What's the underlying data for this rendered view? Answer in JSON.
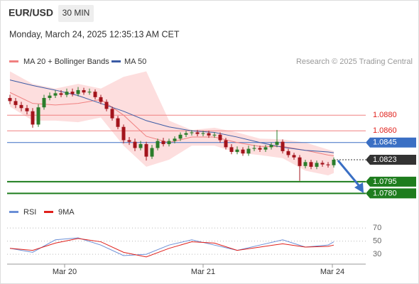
{
  "header": {
    "symbol": "EUR/USD",
    "interval": "30 MIN",
    "timestamp": "Monday, March 24, 2025 12:35:13 AM CET"
  },
  "chart_data": [
    {
      "type": "candlestick",
      "source": "Research © 2025 Trading Central",
      "xlim": [
        -0.5,
        62.625
      ],
      "ylim": [
        1.0764,
        1.0941
      ],
      "up_color": "#2b7d2b",
      "down_color": "#a3141c",
      "open": [
        1.0902,
        1.0898,
        1.0893,
        1.0889,
        1.0885,
        1.0868,
        1.089,
        1.0902,
        1.0905,
        1.0908,
        1.0906,
        1.091,
        1.0907,
        1.0912,
        1.0909,
        1.091,
        1.0903,
        1.0897,
        1.0888,
        1.0876,
        1.0865,
        1.0848,
        1.0846,
        1.0838,
        1.0843,
        1.0827,
        1.0838,
        1.0847,
        1.0843,
        1.0847,
        1.085,
        1.0855,
        1.0857,
        1.0858,
        1.0856,
        1.0857,
        1.0854,
        1.0855,
        1.0848,
        1.0839,
        1.0833,
        1.0836,
        1.0831,
        1.0837,
        1.0838,
        1.0836,
        1.0839,
        1.0842,
        1.0846,
        1.0834,
        1.0829,
        1.0826,
        1.0815,
        1.082,
        1.0814,
        1.0819,
        1.0817,
        1.0816
      ],
      "high": [
        1.0906,
        1.0902,
        1.0897,
        1.0893,
        1.0889,
        1.0894,
        1.0906,
        1.0909,
        1.0912,
        1.0912,
        1.0914,
        1.0914,
        1.0916,
        1.0915,
        1.0914,
        1.0913,
        1.0906,
        1.09,
        1.0891,
        1.0879,
        1.0868,
        1.0852,
        1.085,
        1.0847,
        1.0846,
        1.0842,
        1.085,
        1.0851,
        1.085,
        1.0853,
        1.0858,
        1.086,
        1.0861,
        1.0861,
        1.086,
        1.086,
        1.0858,
        1.0858,
        1.0851,
        1.0843,
        1.084,
        1.0839,
        1.0841,
        1.0842,
        1.0841,
        1.0842,
        1.0845,
        1.0861,
        1.0849,
        1.0837,
        1.0832,
        1.0829,
        1.0823,
        1.0823,
        1.0822,
        1.0822,
        1.082,
        1.0826
      ],
      "low": [
        1.0894,
        1.0889,
        1.0885,
        1.0881,
        1.0864,
        1.0865,
        1.0887,
        1.0899,
        1.0902,
        1.0903,
        1.0903,
        1.0904,
        1.0904,
        1.0906,
        1.0906,
        1.09,
        1.0894,
        1.0885,
        1.0873,
        1.0862,
        1.0844,
        1.0842,
        1.0834,
        1.0835,
        1.0822,
        1.0824,
        1.0835,
        1.084,
        1.084,
        1.0844,
        1.0847,
        1.0852,
        1.0854,
        1.0853,
        1.0853,
        1.0851,
        1.0851,
        1.0845,
        1.0836,
        1.083,
        1.083,
        1.0828,
        1.0828,
        1.0834,
        1.0833,
        1.0833,
        1.0836,
        1.0839,
        1.0831,
        1.0826,
        1.0823,
        1.0796,
        1.0812,
        1.0811,
        1.0811,
        1.0814,
        1.0813,
        1.0813
      ],
      "close": [
        1.0898,
        1.0893,
        1.0889,
        1.0885,
        1.0868,
        1.089,
        1.0902,
        1.0905,
        1.0908,
        1.0906,
        1.091,
        1.0907,
        1.0912,
        1.0909,
        1.091,
        1.0903,
        1.0897,
        1.0888,
        1.0876,
        1.0865,
        1.0848,
        1.0846,
        1.0838,
        1.0843,
        1.0827,
        1.0838,
        1.0847,
        1.0843,
        1.0847,
        1.085,
        1.0855,
        1.0857,
        1.0858,
        1.0856,
        1.0857,
        1.0854,
        1.0855,
        1.0848,
        1.0839,
        1.0833,
        1.0836,
        1.0831,
        1.0837,
        1.0838,
        1.0836,
        1.0839,
        1.0842,
        1.0846,
        1.0834,
        1.0829,
        1.0826,
        1.0815,
        1.082,
        1.0814,
        1.0819,
        1.0817,
        1.0816,
        1.0823
      ],
      "series": [
        {
          "name": "MA 20 + Bollinger Bands",
          "color": "#f08080",
          "fill": "#fcd6d6",
          "x": [
            0,
            4,
            8,
            12,
            16,
            20,
            24,
            28,
            32,
            36,
            40,
            44,
            48,
            52,
            56,
            57
          ],
          "values": [
            1.0909,
            1.0895,
            1.0893,
            1.0895,
            1.09,
            1.088,
            1.0853,
            1.0845,
            1.0852,
            1.0852,
            1.0845,
            1.084,
            1.084,
            1.0835,
            1.0829,
            1.0828
          ],
          "upper": [
            1.0936,
            1.092,
            1.0914,
            1.092,
            1.0914,
            1.0929,
            1.0936,
            1.0873,
            1.0861,
            1.0864,
            1.0858,
            1.085,
            1.0849,
            1.0845,
            1.0836,
            1.0834
          ],
          "lower": [
            1.0891,
            1.0873,
            1.0873,
            1.0871,
            1.0877,
            1.0841,
            1.0814,
            1.0823,
            1.0841,
            1.0841,
            1.0832,
            1.0829,
            1.0825,
            1.0809,
            1.0803,
            1.0806
          ]
        },
        {
          "name": "MA 50",
          "color": "#3b5ba5",
          "x": [
            0,
            4,
            8,
            12,
            16,
            20,
            24,
            28,
            32,
            36,
            40,
            44,
            48,
            52,
            56,
            57
          ],
          "values": [
            1.0925,
            1.0918,
            1.0912,
            1.0905,
            1.0895,
            1.0885,
            1.0873,
            1.0865,
            1.086,
            1.0858,
            1.0852,
            1.0845,
            1.0839,
            1.0835,
            1.0833,
            1.0832
          ]
        }
      ],
      "levels": [
        {
          "value": 1.088,
          "label": "1.0880",
          "style": "text",
          "color": "#f08080",
          "text_color": "#e0201b"
        },
        {
          "value": 1.086,
          "label": "1.0860",
          "style": "text",
          "color": "#f08080",
          "text_color": "#e0201b"
        },
        {
          "value": 1.0845,
          "label": "1.0845",
          "style": "tag",
          "color": "#3a6fc4"
        },
        {
          "value": 1.0823,
          "label": "1.0823",
          "style": "current",
          "color": "#333333"
        },
        {
          "value": 1.0795,
          "label": "1.0795",
          "style": "thick",
          "color": "#1e7d1e"
        },
        {
          "value": 1.078,
          "label": "1.0780",
          "style": "thick",
          "color": "#1e7d1e"
        }
      ]
    },
    {
      "type": "line",
      "xlim": [
        -0.5,
        62.625
      ],
      "ylim": [
        15,
        87
      ],
      "yticks": [
        70,
        50,
        30
      ],
      "xticks": [
        {
          "value": 9.625,
          "label": "Mar 20"
        },
        {
          "value": 34,
          "label": "Mar 21"
        },
        {
          "value": 56.75,
          "label": "Mar 24"
        }
      ],
      "x": [
        0,
        4,
        8,
        12,
        16,
        20,
        24,
        28,
        32,
        36,
        40,
        44,
        48,
        52,
        56,
        57
      ],
      "series": [
        {
          "name": "RSI",
          "color": "#6b8fd6",
          "values": [
            39,
            33,
            52,
            55,
            44,
            28,
            30,
            44,
            52,
            44,
            36,
            44,
            52,
            41,
            44,
            49
          ]
        },
        {
          "name": "9MA",
          "color": "#e0201b",
          "values": [
            39,
            36,
            47,
            54,
            49,
            33,
            26,
            39,
            49,
            47,
            36,
            41,
            46,
            41,
            42,
            44
          ]
        }
      ]
    }
  ]
}
